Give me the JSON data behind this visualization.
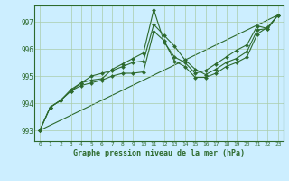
{
  "bg_color": "#cceeff",
  "grid_color": "#aaccaa",
  "line_color": "#2d6a2d",
  "marker_color": "#2d6a2d",
  "title": "Graphe pression niveau de la mer (hPa)",
  "xlim": [
    -0.5,
    23.5
  ],
  "ylim": [
    992.6,
    997.6
  ],
  "yticks": [
    993,
    994,
    995,
    996,
    997
  ],
  "xticks": [
    0,
    1,
    2,
    3,
    4,
    5,
    6,
    7,
    8,
    9,
    10,
    11,
    12,
    13,
    14,
    15,
    16,
    17,
    18,
    19,
    20,
    21,
    22,
    23
  ],
  "series": [
    {
      "x": [
        0,
        1,
        2,
        3,
        4,
        5,
        6,
        7,
        8,
        9,
        10,
        11,
        12,
        13,
        14,
        15,
        16,
        17,
        18,
        19,
        20,
        21,
        22,
        23
      ],
      "y": [
        993.0,
        993.85,
        994.1,
        994.45,
        994.65,
        994.75,
        994.85,
        995.0,
        995.1,
        995.1,
        995.15,
        996.65,
        996.3,
        995.55,
        995.35,
        994.95,
        994.95,
        995.1,
        995.35,
        995.5,
        995.7,
        996.55,
        996.8,
        997.25
      ],
      "markers": true,
      "lw": 0.8
    },
    {
      "x": [
        0,
        1,
        2,
        3,
        4,
        5,
        6,
        7,
        8,
        9,
        10,
        11,
        12,
        13,
        14,
        15,
        16,
        17,
        18,
        19,
        20,
        21,
        22,
        23
      ],
      "y": [
        993.0,
        993.85,
        994.1,
        994.45,
        994.75,
        995.0,
        995.1,
        995.2,
        995.35,
        995.5,
        995.55,
        996.9,
        996.5,
        996.1,
        995.6,
        995.25,
        995.05,
        995.25,
        995.5,
        995.65,
        995.9,
        996.7,
        996.75,
        997.25
      ],
      "markers": true,
      "lw": 0.8
    },
    {
      "x": [
        0,
        1,
        2,
        3,
        4,
        5,
        6,
        7,
        8,
        9,
        10,
        11,
        12,
        13,
        14,
        15,
        16,
        17,
        18,
        19,
        20,
        21,
        22,
        23
      ],
      "y": [
        993.0,
        993.85,
        994.1,
        994.5,
        994.75,
        994.85,
        994.9,
        995.25,
        995.45,
        995.65,
        995.85,
        997.45,
        996.25,
        995.7,
        995.5,
        995.1,
        995.2,
        995.45,
        995.7,
        995.95,
        996.15,
        996.85,
        996.75,
        997.25
      ],
      "markers": true,
      "lw": 0.8
    },
    {
      "x": [
        0,
        23
      ],
      "y": [
        993.0,
        997.25
      ],
      "markers": false,
      "lw": 0.8
    }
  ]
}
